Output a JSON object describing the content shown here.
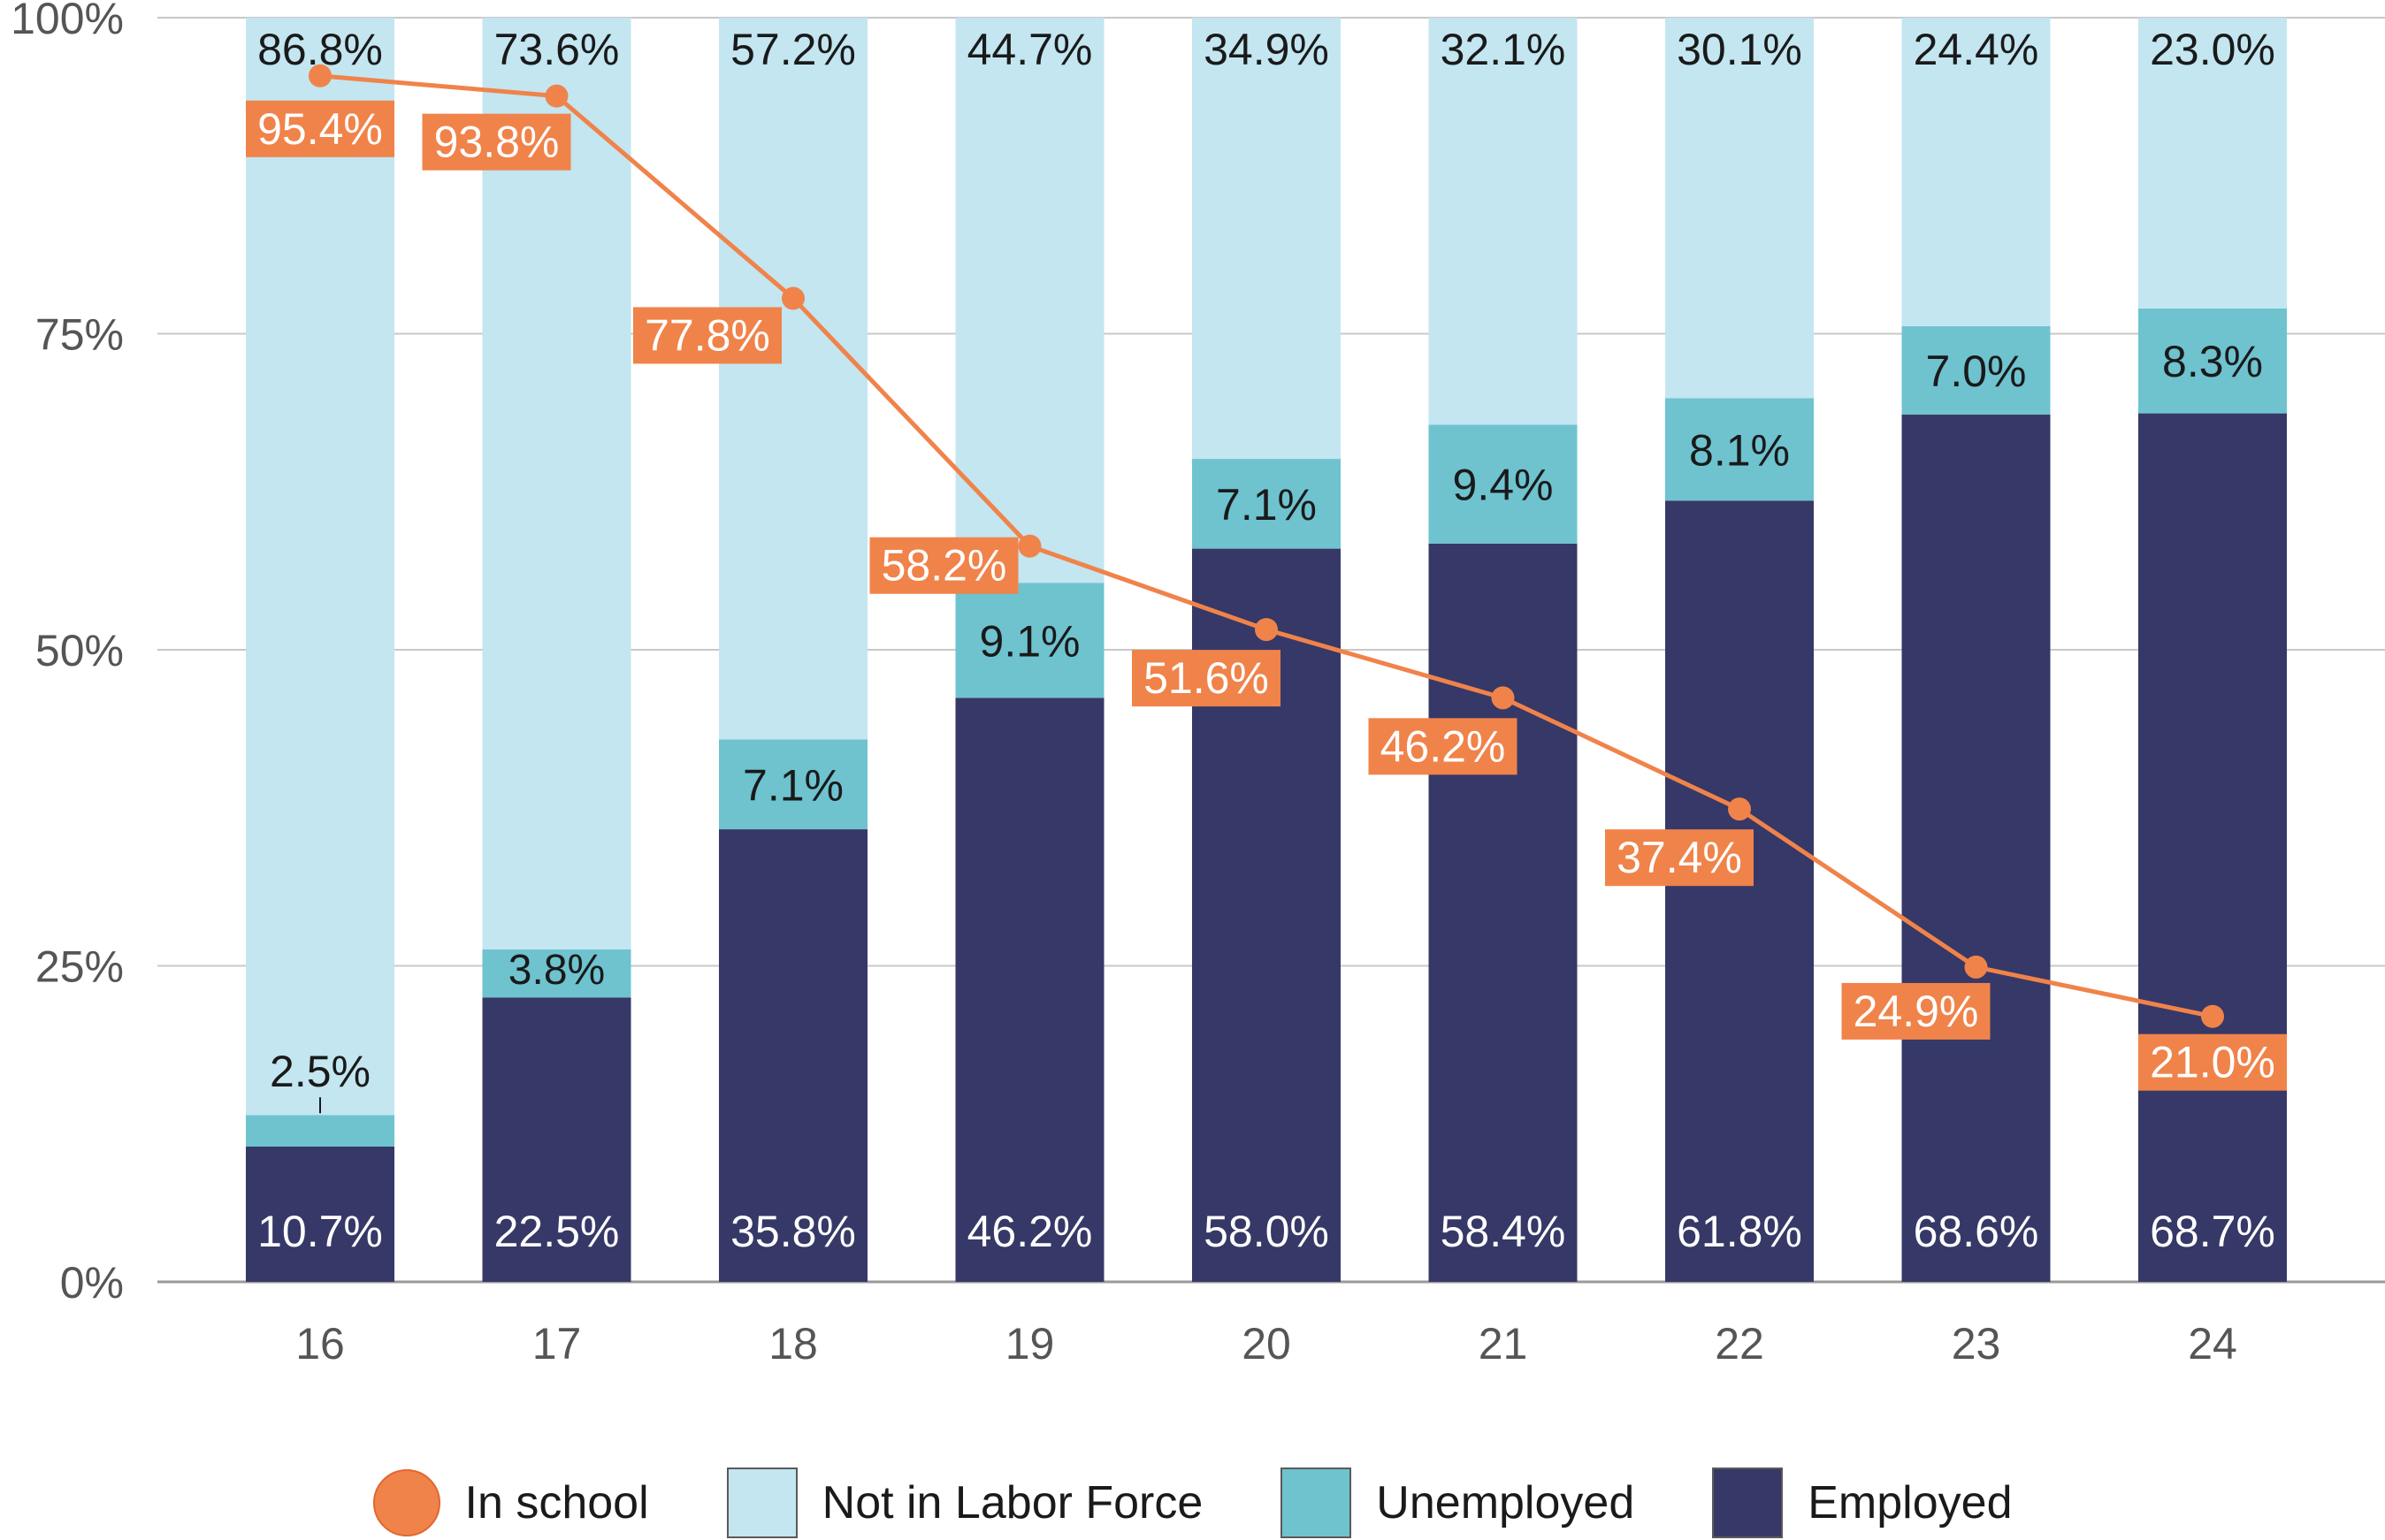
{
  "chart_data": {
    "type": "bar",
    "stacked": true,
    "categories": [
      "16",
      "17",
      "18",
      "19",
      "20",
      "21",
      "22",
      "23",
      "24"
    ],
    "series": [
      {
        "name": "Employed",
        "color": "#363867",
        "values": [
          10.7,
          22.5,
          35.8,
          46.2,
          58.0,
          58.4,
          61.8,
          68.6,
          68.7
        ],
        "labels": [
          "10.7%",
          "22.5%",
          "35.8%",
          "46.2%",
          "58.0%",
          "58.4%",
          "61.8%",
          "68.6%",
          "68.7%"
        ]
      },
      {
        "name": "Unemployed",
        "color": "#6ec3cf",
        "values": [
          2.5,
          3.8,
          7.1,
          9.1,
          7.1,
          9.4,
          8.1,
          7.0,
          8.3
        ],
        "labels": [
          "2.5%",
          "3.8%",
          "7.1%",
          "9.1%",
          "7.1%",
          "9.4%",
          "8.1%",
          "7.0%",
          "8.3%"
        ]
      },
      {
        "name": "Not in Labor Force",
        "color": "#c3e6f1",
        "values": [
          86.8,
          73.6,
          57.2,
          44.7,
          34.9,
          32.1,
          30.1,
          24.4,
          23.0
        ],
        "labels": [
          "86.8%",
          "73.6%",
          "57.2%",
          "44.7%",
          "34.9%",
          "32.1%",
          "30.1%",
          "24.4%",
          "23.0%"
        ]
      }
    ],
    "line": {
      "name": "In school",
      "color": "#f0834a",
      "values": [
        95.4,
        93.8,
        77.8,
        58.2,
        51.6,
        46.2,
        37.4,
        24.9,
        21.0
      ],
      "labels": [
        "95.4%",
        "93.8%",
        "77.8%",
        "58.2%",
        "51.6%",
        "46.2%",
        "37.4%",
        "24.9%",
        "21.0%"
      ]
    },
    "ylim": [
      0,
      100
    ],
    "yticks": [
      0,
      25,
      50,
      75,
      100
    ],
    "ytick_labels": [
      "0%",
      "25%",
      "50%",
      "75%",
      "100%"
    ],
    "title": "",
    "xlabel": "",
    "ylabel": "",
    "grid": true,
    "legend": "bottom-center"
  },
  "legend": {
    "items": [
      {
        "label": "In school",
        "color": "#f0834a",
        "shape": "circle"
      },
      {
        "label": "Not in Labor Force",
        "color": "#c3e6f1",
        "shape": "square"
      },
      {
        "label": "Unemployed",
        "color": "#6ec3cf",
        "shape": "square"
      },
      {
        "label": "Employed",
        "color": "#363867",
        "shape": "square"
      }
    ]
  }
}
